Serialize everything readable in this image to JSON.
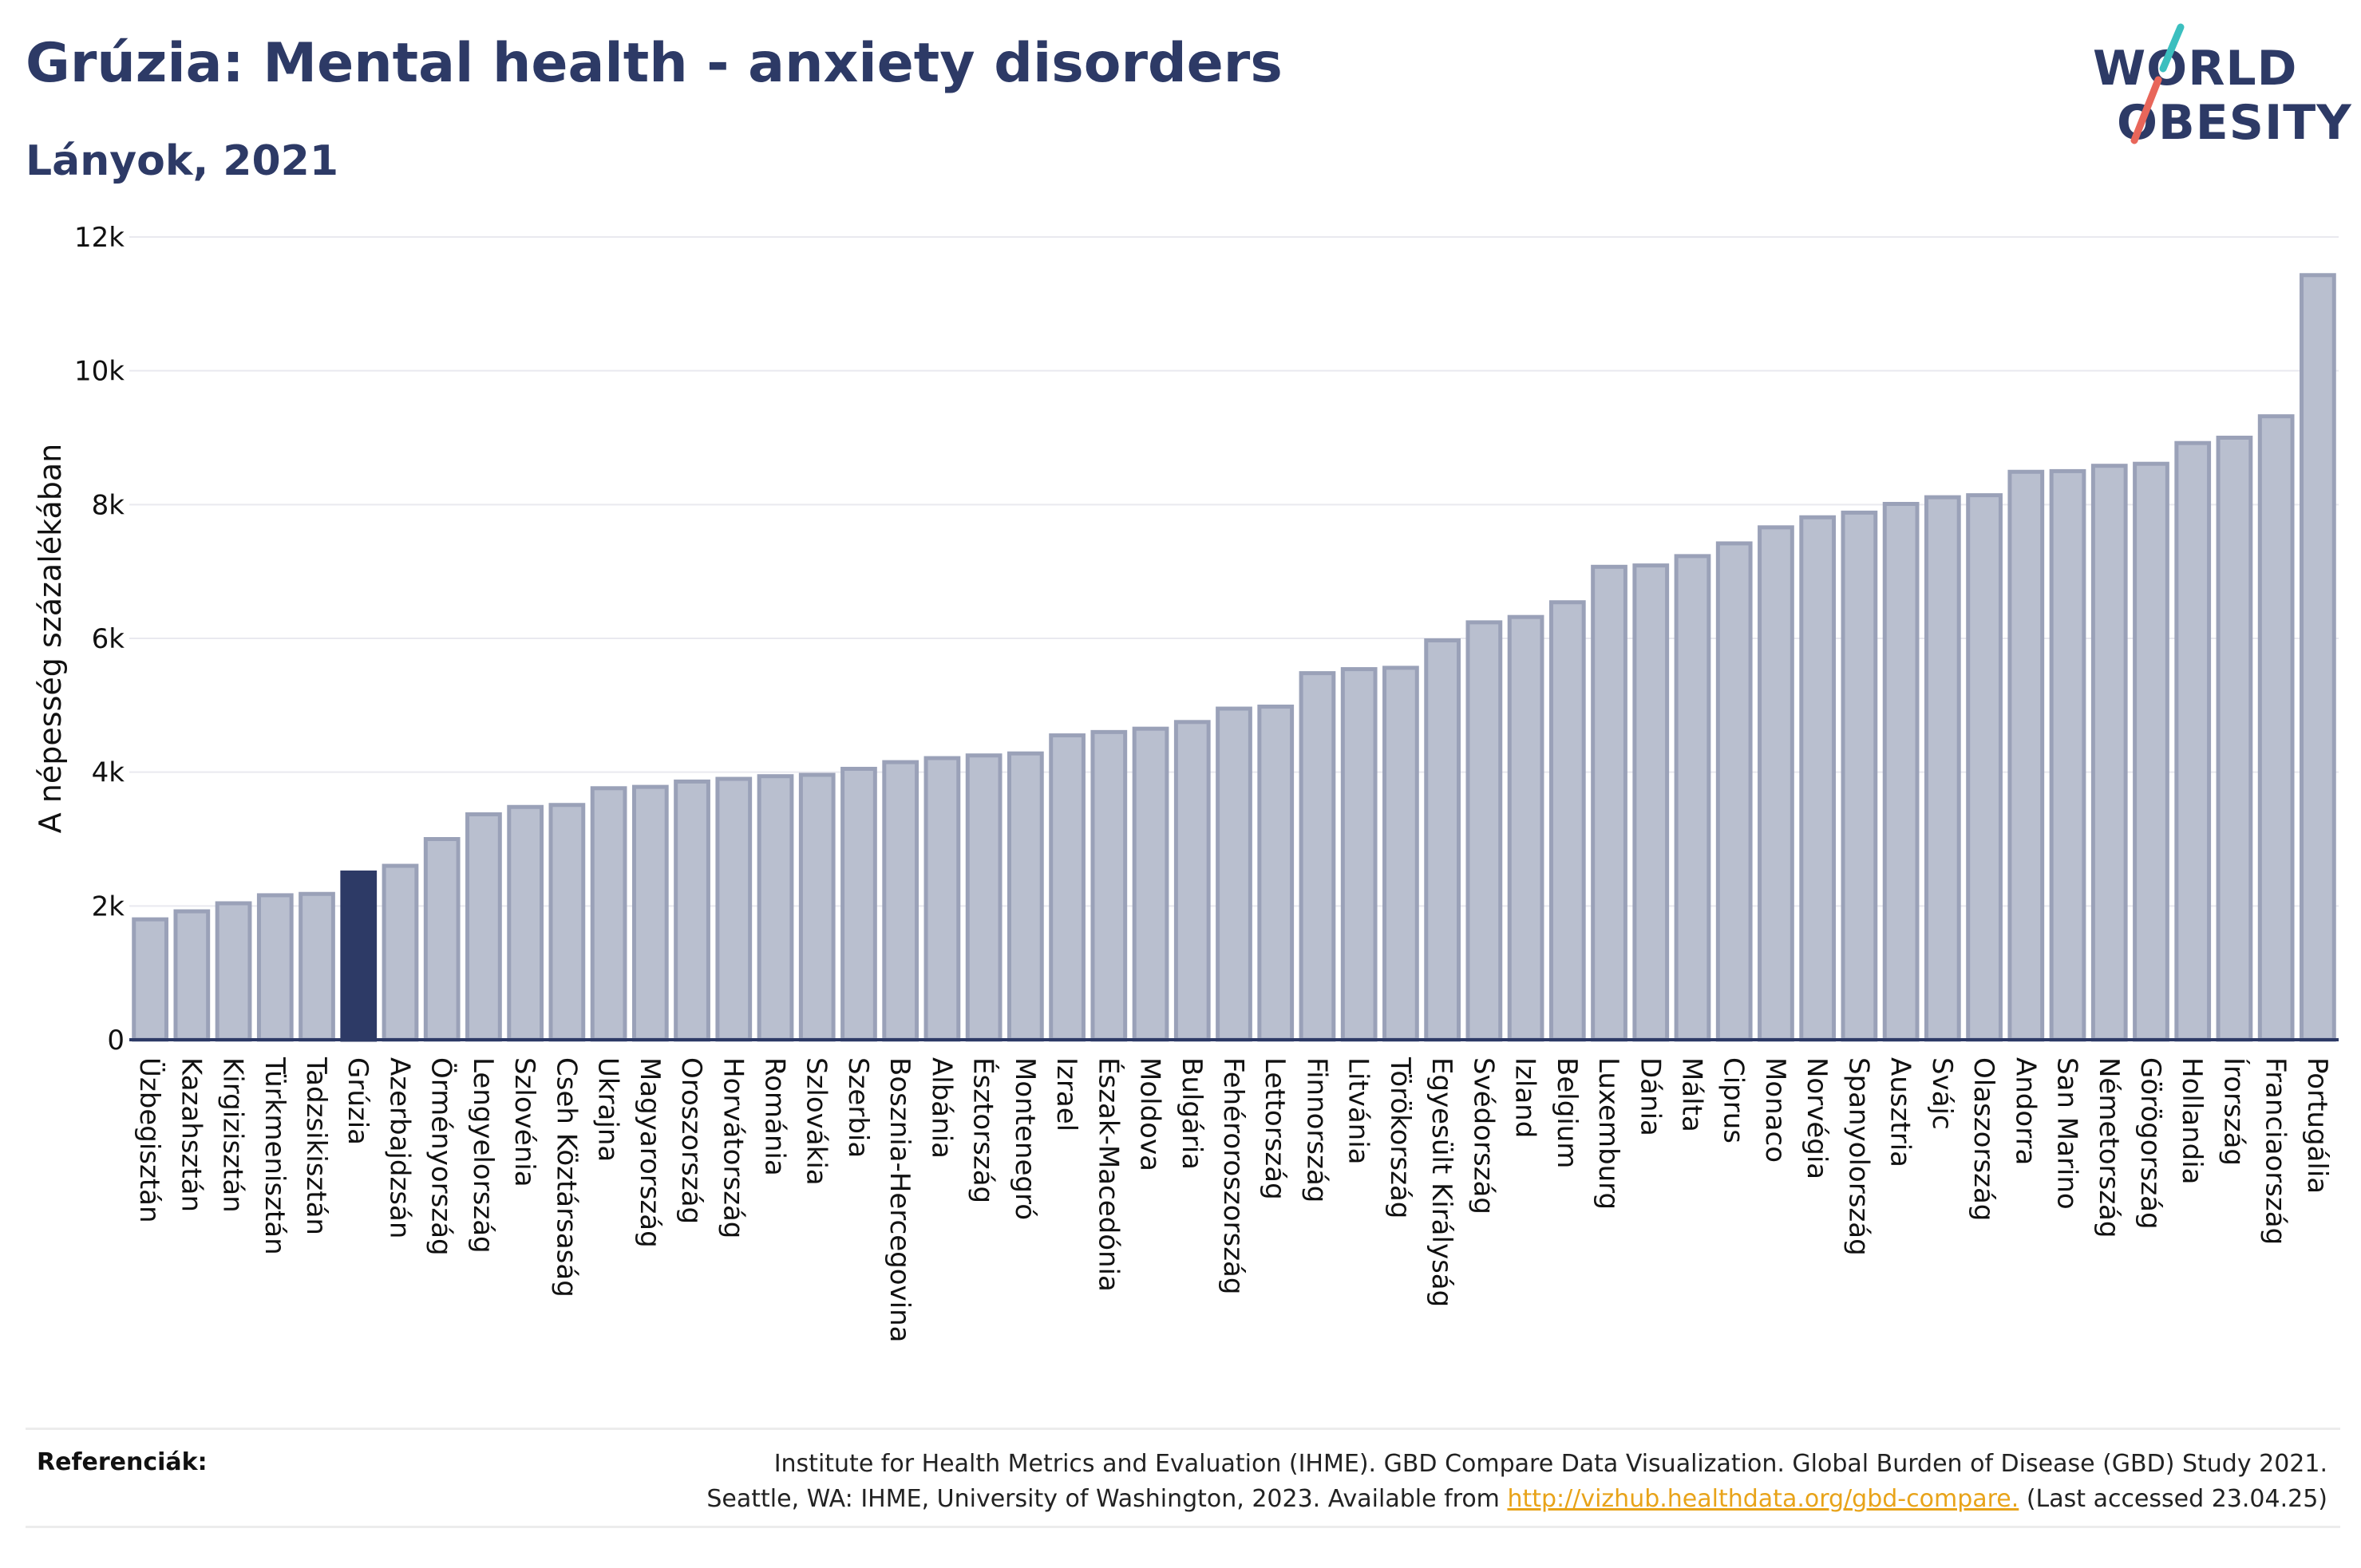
{
  "header": {
    "title": "Grúzia: Mental health - anxiety disorders",
    "subtitle": "Lányok, 2021"
  },
  "logo": {
    "line1": "WORLD",
    "line2": "OBESITY",
    "accent_colors": [
      "#3bbfbf",
      "#e8665a"
    ]
  },
  "chart_data": {
    "type": "bar",
    "title": "Grúzia: Mental health - anxiety disorders",
    "subtitle": "Lányok, 2021",
    "ylabel": "A népesség százalékában",
    "xlabel": "",
    "ylim": [
      0,
      12000
    ],
    "yticks": [
      0,
      2000,
      4000,
      6000,
      8000,
      10000,
      12000
    ],
    "ytick_labels": [
      "0",
      "2k",
      "4k",
      "6k",
      "8k",
      "10k",
      "12k"
    ],
    "grid": true,
    "highlight": "Grúzia",
    "colors": {
      "bar": "#b9bfcf",
      "bar_stroke": "#9aa1b8",
      "highlight": "#2d3a66"
    },
    "categories": [
      "Üzbegisztán",
      "Kazahsztán",
      "Kirgizisztán",
      "Türkmenisztán",
      "Tadzsikisztán",
      "Grúzia",
      "Azerbajdzsán",
      "Örményország",
      "Lengyelország",
      "Szlovénia",
      "Cseh Köztársaság",
      "Ukrajna",
      "Magyarország",
      "Oroszország",
      "Horvátország",
      "Románia",
      "Szlovákia",
      "Szerbia",
      "Bosznia-Hercegovina",
      "Albánia",
      "Észtország",
      "Montenegró",
      "Izrael",
      "Észak-Macedónia",
      "Moldova",
      "Bulgária",
      "Fehéroroszország",
      "Lettország",
      "Finnország",
      "Litvánia",
      "Törökország",
      "Egyesült Királyság",
      "Svédország",
      "Izland",
      "Belgium",
      "Luxemburg",
      "Dánia",
      "Málta",
      "Ciprus",
      "Monaco",
      "Norvégia",
      "Spanyolország",
      "Ausztria",
      "Svájc",
      "Olaszország",
      "Andorra",
      "San Marino",
      "Németország",
      "Görögország",
      "Hollandia",
      "Írország",
      "Franciaország",
      "Portugália"
    ],
    "values": [
      1800,
      1920,
      2040,
      2160,
      2180,
      2500,
      2600,
      3000,
      3370,
      3480,
      3510,
      3760,
      3780,
      3860,
      3900,
      3940,
      3960,
      4050,
      4150,
      4210,
      4250,
      4280,
      4550,
      4600,
      4650,
      4750,
      4950,
      4980,
      5480,
      5540,
      5560,
      5970,
      6240,
      6320,
      6540,
      7070,
      7090,
      7230,
      7420,
      7660,
      7810,
      7880,
      8010,
      8110,
      8140,
      8490,
      8500,
      8580,
      8610,
      8920,
      9000,
      9320,
      11430
    ]
  },
  "references": {
    "label": "Referenciák:",
    "line1": "Institute for Health Metrics and Evaluation (IHME). GBD Compare Data Visualization. Global Burden of Disease (GBD) Study 2021.",
    "line2_before": "Seattle, WA: IHME, University of Washington, 2023. Available from ",
    "link": "http://vizhub.healthdata.org/gbd-compare.",
    "line2_after": " (Last accessed 23.04.25)"
  }
}
